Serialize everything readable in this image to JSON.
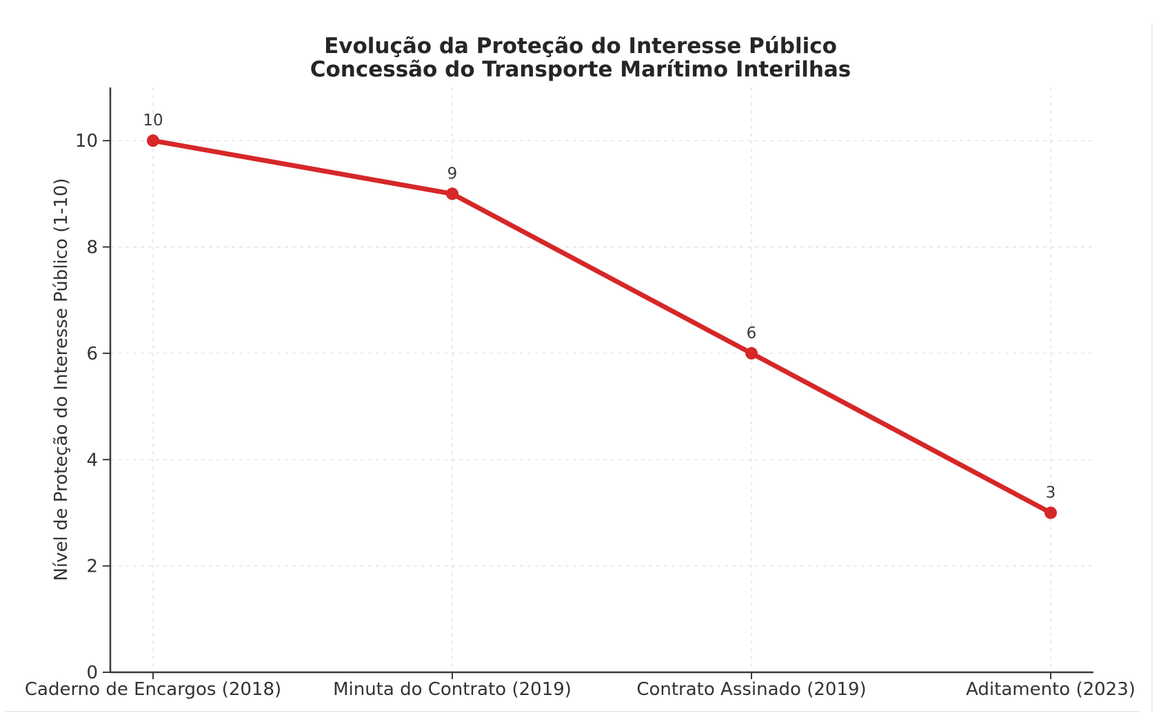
{
  "chart_data": {
    "type": "line",
    "title": "Evolução da Proteção do Interesse Público",
    "subtitle": "Concessão do Transporte Marítimo Interilhas",
    "categories": [
      "Caderno de Encargos (2018)",
      "Minuta do Contrato (2019)",
      "Contrato Assinado (2019)",
      "Aditamento (2023)"
    ],
    "values": [
      10,
      9,
      6,
      3
    ],
    "point_labels": [
      "10",
      "9",
      "6",
      "3"
    ],
    "xlabel": "",
    "ylabel": "Nível de Proteção do Interesse Público (1-10)",
    "ylim": [
      0,
      11
    ],
    "yticks": [
      0,
      2,
      4,
      6,
      8,
      10
    ],
    "grid": "dashed light-gray, horizontal at y-ticks and vertical at each category",
    "legend": "none",
    "marker": "filled circle",
    "line_style": "solid thick"
  },
  "colors": {
    "line": "#d62728",
    "grid": "#e0e0e0",
    "spine": "#3a3a3a",
    "title_text": "#262626",
    "tick_text": "#333333",
    "annotation_text": "#3a3a3a",
    "background": "#ffffff",
    "divider": "#e9edf1"
  }
}
